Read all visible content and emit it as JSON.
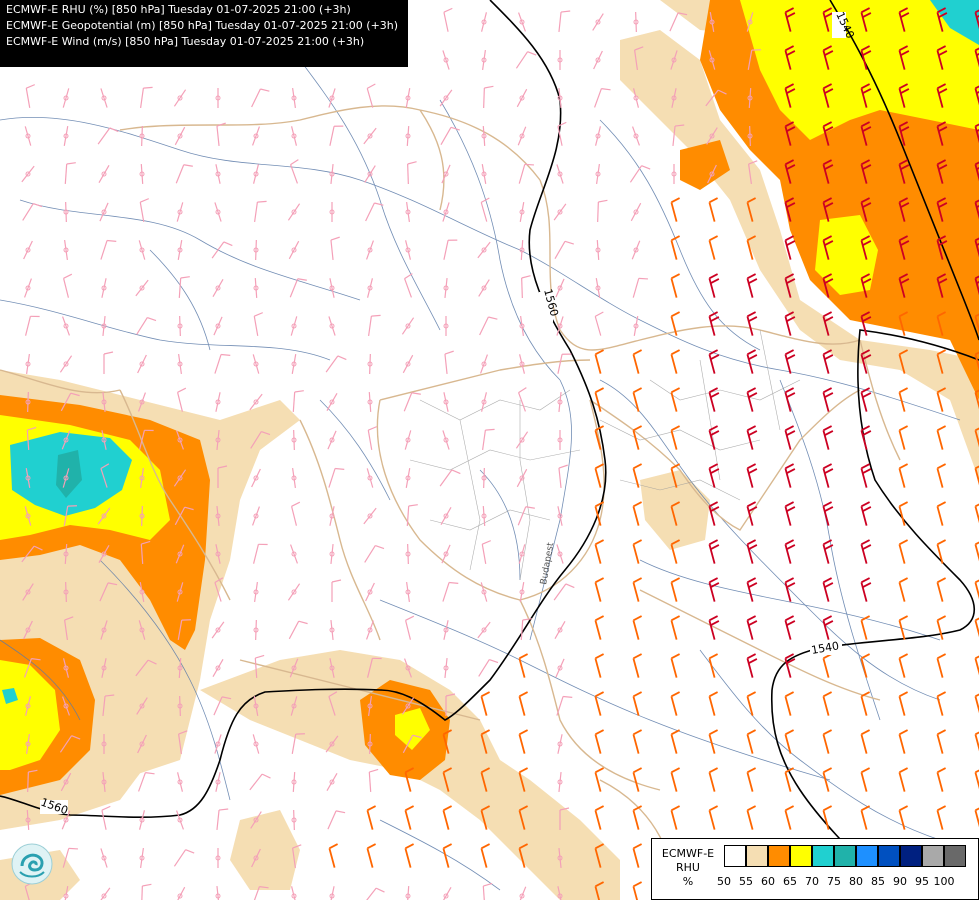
{
  "header": {
    "lines": [
      "ECMWF-E RHU (%) [850 hPa] Tuesday 01-07-2025 21:00 (+3h)",
      "ECMWF-E Geopotential (m) [850 hPa] Tuesday 01-07-2025 21:00 (+3h)",
      "ECMWF-E Wind (m/s) [850 hPa] Tuesday 01-07-2025 21:00 (+3h)"
    ]
  },
  "contour_labels": {
    "c1560_center": "1560",
    "c1560_sw": "1560",
    "c1540_ne": "1540",
    "c1540_se": "1540",
    "budapest": "Budapest"
  },
  "legend": {
    "title_1": "ECMWF-E",
    "title_2": "RHU",
    "title_3": "%",
    "ticks": [
      "50",
      "55",
      "60",
      "65",
      "70",
      "75",
      "80",
      "85",
      "90",
      "95",
      "100"
    ],
    "colors": [
      "#ffffff",
      "#f5deb3",
      "#ff8c00",
      "#ffff00",
      "#20d0d0",
      "#20b2aa",
      "#1e90ff",
      "#0050c0",
      "#002080",
      "#a9a9a9",
      "#696969"
    ]
  },
  "colors": {
    "band_55": "#f5deb3",
    "band_60": "#ff8c00",
    "band_65": "#ffff00",
    "band_70": "#20d0d0",
    "band_75": "#20b2aa",
    "barb_light": "#f4a0b8",
    "barb_orange": "#ff6600",
    "barb_red": "#cc0022",
    "border": "#d8b890",
    "river": "#5a7aa8",
    "contour": "#000000"
  },
  "logo": {
    "name": "ecmwf-logo-icon"
  }
}
